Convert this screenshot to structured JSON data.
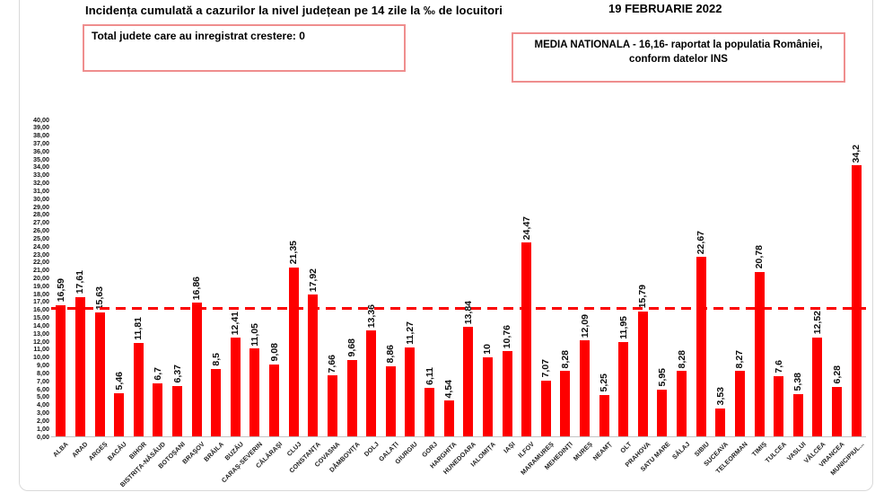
{
  "header": {
    "title": "Incidența cumulată a cazurilor la nivel județean pe 14 zile la ‰ de locuitori",
    "date": "19 FEBRUARIE 2022",
    "growth_box": "Total judete care au inregistrat crestere: 0",
    "national_box_line1": "MEDIA NATIONALA - 16,16-  raportat la populatia României,",
    "national_box_line2": "conform datelor INS"
  },
  "colors": {
    "bar": "#fe0000",
    "average_line": "#fb0000",
    "box_border": "#ef8e8e",
    "frame_border": "#d9d9d9"
  },
  "chart_data": {
    "type": "bar",
    "title": "Incidența cumulată a cazurilor la nivel județean pe 14 zile la ‰ de locuitori",
    "xlabel": "",
    "ylabel": "",
    "ylim": [
      0,
      40
    ],
    "ytick_step": 1,
    "grid": false,
    "legend": "none",
    "national_average": 16.16,
    "categories": [
      "ALBA",
      "ARAD",
      "ARGEȘ",
      "BACĂU",
      "BIHOR",
      "BISTRIȚA-NĂSĂUD",
      "BOTOȘANI",
      "BRAȘOV",
      "BRĂILA",
      "BUZĂU",
      "CARAȘ-SEVERIN",
      "CĂLĂRAȘI",
      "CLUJ",
      "CONSTANȚA",
      "COVASNA",
      "DÂMBOVIȚA",
      "DOLJ",
      "GALAȚI",
      "GIURGIU",
      "GORJ",
      "HARGHITA",
      "HUNEDOARA",
      "IALOMIȚA",
      "IAȘI",
      "ILFOV",
      "MARAMUREȘ",
      "MEHEDINȚI",
      "MUREȘ",
      "NEAMȚ",
      "OLT",
      "PRAHOVA",
      "SATU MARE",
      "SĂLAJ",
      "SIBIU",
      "SUCEAVA",
      "TELEORMAN",
      "TIMIȘ",
      "TULCEA",
      "VASLUI",
      "VÂLCEA",
      "VRANCEA",
      "MUNICIPIUL..."
    ],
    "values": [
      16.59,
      17.61,
      15.63,
      5.46,
      11.81,
      6.7,
      6.37,
      16.86,
      8.5,
      12.41,
      11.05,
      9.08,
      21.35,
      17.92,
      7.66,
      9.68,
      13.36,
      8.86,
      11.27,
      6.11,
      4.54,
      13.84,
      10,
      10.76,
      24.47,
      7.07,
      8.28,
      12.09,
      5.25,
      11.95,
      15.79,
      5.95,
      8.28,
      22.67,
      3.53,
      8.27,
      20.78,
      7.6,
      5.38,
      12.52,
      6.28,
      34.2
    ]
  }
}
